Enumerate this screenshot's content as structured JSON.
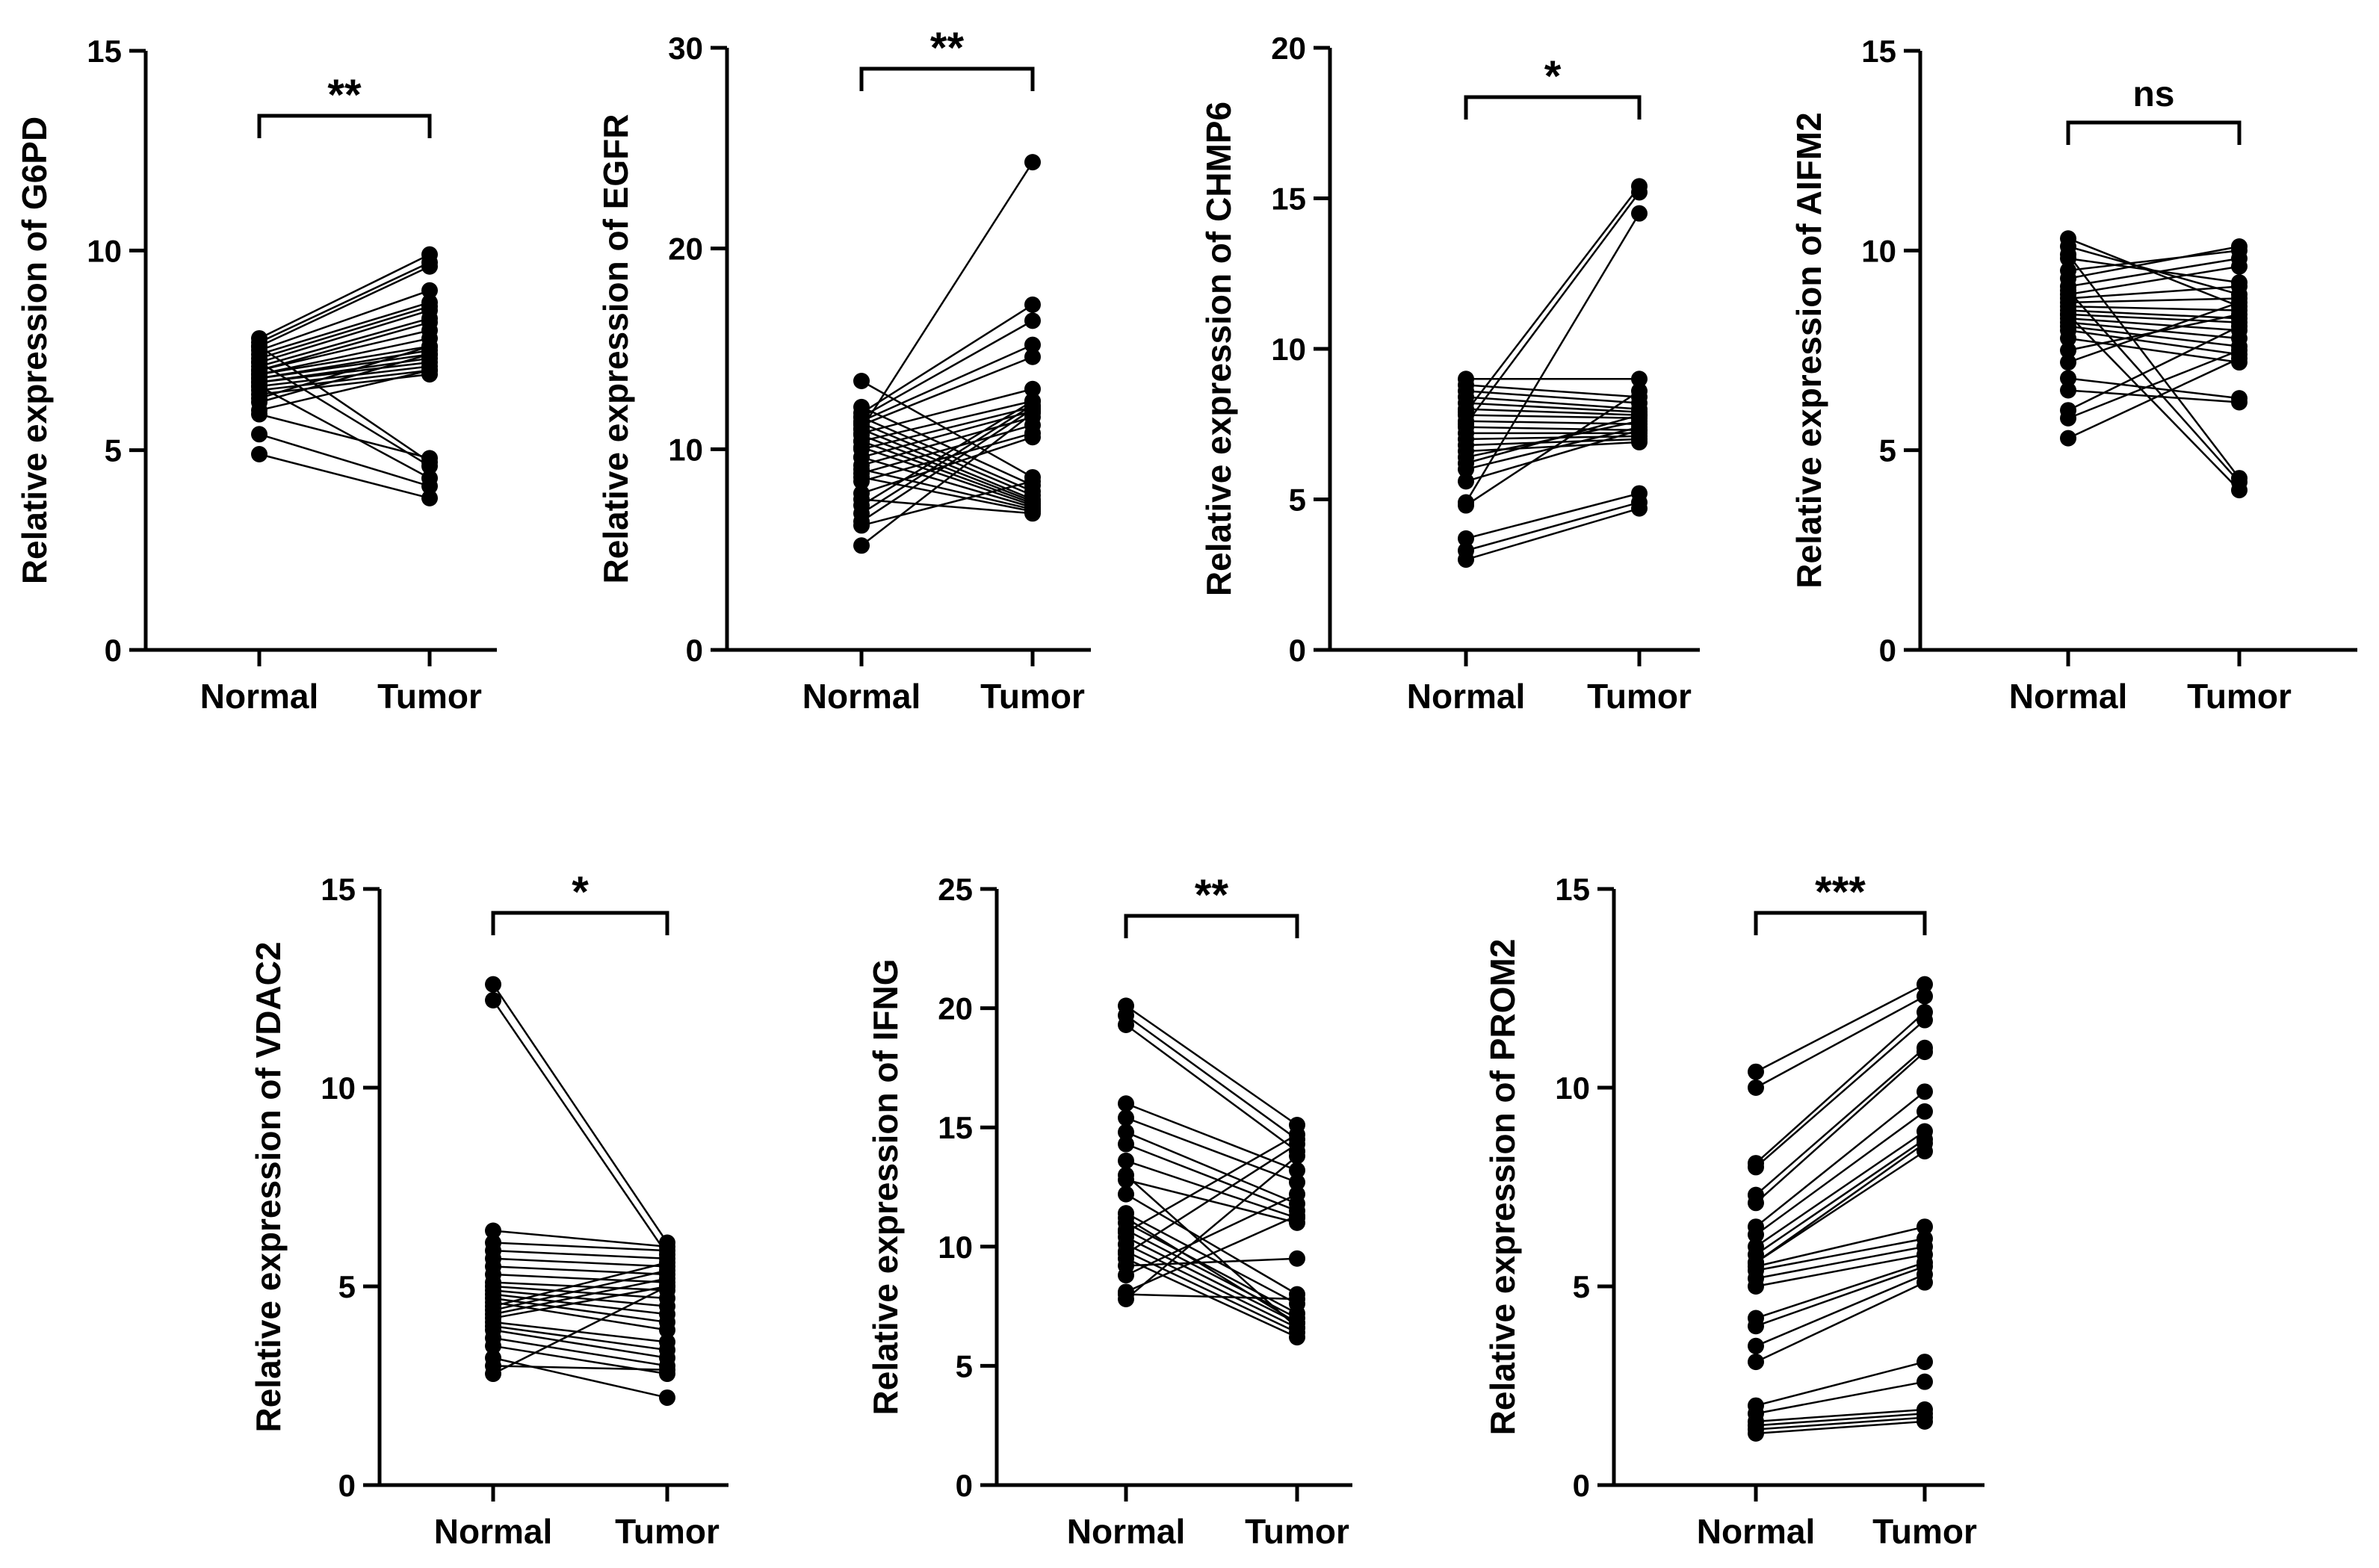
{
  "chart_data": [
    {
      "type": "line",
      "title": "",
      "categories": [
        "Normal",
        "Tumor"
      ],
      "xlabel": "",
      "ylabel": "Relative expression of G6PD",
      "ylim": [
        0,
        15
      ],
      "yticks": [
        0,
        5,
        10,
        15
      ],
      "significance": "**",
      "pairs": [
        [
          7.8,
          9.9
        ],
        [
          7.7,
          9.7
        ],
        [
          7.6,
          9.6
        ],
        [
          7.5,
          9.0
        ],
        [
          7.4,
          8.7
        ],
        [
          7.3,
          8.6
        ],
        [
          7.2,
          8.5
        ],
        [
          7.1,
          8.3
        ],
        [
          7.0,
          8.2
        ],
        [
          7.0,
          8.0
        ],
        [
          6.9,
          7.8
        ],
        [
          6.9,
          7.6
        ],
        [
          6.8,
          7.5
        ],
        [
          6.8,
          7.4
        ],
        [
          6.7,
          7.3
        ],
        [
          6.7,
          7.2
        ],
        [
          6.6,
          7.1
        ],
        [
          6.5,
          7.0
        ],
        [
          6.4,
          6.9
        ],
        [
          6.3,
          7.6
        ],
        [
          6.2,
          7.4
        ],
        [
          6.0,
          7.0
        ],
        [
          5.9,
          4.8
        ],
        [
          7.6,
          4.7
        ],
        [
          7.2,
          4.6
        ],
        [
          6.6,
          4.3
        ],
        [
          5.4,
          4.1
        ],
        [
          4.9,
          3.8
        ]
      ]
    },
    {
      "type": "line",
      "title": "",
      "categories": [
        "Normal",
        "Tumor"
      ],
      "xlabel": "",
      "ylabel": "Relative expression of EGFR",
      "ylim": [
        0,
        30
      ],
      "yticks": [
        0,
        10,
        20,
        30
      ],
      "significance": "**",
      "pairs": [
        [
          11.0,
          24.3
        ],
        [
          11.8,
          17.2
        ],
        [
          11.6,
          16.4
        ],
        [
          11.4,
          15.2
        ],
        [
          11.2,
          14.6
        ],
        [
          10.8,
          13.0
        ],
        [
          10.4,
          12.4
        ],
        [
          10.0,
          12.1
        ],
        [
          9.6,
          11.9
        ],
        [
          9.2,
          11.6
        ],
        [
          8.8,
          11.2
        ],
        [
          8.4,
          10.8
        ],
        [
          7.8,
          10.6
        ],
        [
          7.2,
          12.4
        ],
        [
          6.8,
          12.2
        ],
        [
          6.4,
          12.0
        ],
        [
          5.2,
          11.8
        ],
        [
          13.4,
          8.6
        ],
        [
          12.1,
          8.2
        ],
        [
          11.6,
          7.9
        ],
        [
          11.3,
          7.7
        ],
        [
          11.0,
          7.5
        ],
        [
          10.7,
          7.4
        ],
        [
          10.4,
          7.3
        ],
        [
          10.1,
          7.2
        ],
        [
          9.6,
          7.1
        ],
        [
          9.0,
          7.0
        ],
        [
          8.6,
          6.9
        ],
        [
          7.5,
          6.8
        ],
        [
          6.2,
          8.4
        ]
      ]
    },
    {
      "type": "line",
      "title": "",
      "categories": [
        "Normal",
        "Tumor"
      ],
      "xlabel": "",
      "ylabel": "Relative expression of CHMP6",
      "ylim": [
        0,
        20
      ],
      "yticks": [
        0,
        5,
        10,
        15,
        20
      ],
      "significance": "*",
      "pairs": [
        [
          7.9,
          15.4
        ],
        [
          7.5,
          15.2
        ],
        [
          4.9,
          14.5
        ],
        [
          9.0,
          9.0
        ],
        [
          8.8,
          8.4
        ],
        [
          8.6,
          8.2
        ],
        [
          8.4,
          8.0
        ],
        [
          8.2,
          7.9
        ],
        [
          8.0,
          7.8
        ],
        [
          7.8,
          7.7
        ],
        [
          7.6,
          7.5
        ],
        [
          7.4,
          7.3
        ],
        [
          7.2,
          7.2
        ],
        [
          7.0,
          7.1
        ],
        [
          6.8,
          7.0
        ],
        [
          6.6,
          6.9
        ],
        [
          6.4,
          7.6
        ],
        [
          6.2,
          7.8
        ],
        [
          6.0,
          7.4
        ],
        [
          5.6,
          7.3
        ],
        [
          4.8,
          8.6
        ],
        [
          3.7,
          5.2
        ],
        [
          3.3,
          4.9
        ],
        [
          3.0,
          4.7
        ]
      ]
    },
    {
      "type": "line",
      "title": "",
      "categories": [
        "Normal",
        "Tumor"
      ],
      "xlabel": "",
      "ylabel": "Relative expression of AIFM2",
      "ylim": [
        0,
        15
      ],
      "yticks": [
        0,
        5,
        10,
        15
      ],
      "significance": "ns",
      "pairs": [
        [
          10.3,
          8.6
        ],
        [
          10.1,
          8.9
        ],
        [
          9.8,
          9.2
        ],
        [
          9.5,
          10.0
        ],
        [
          9.3,
          10.1
        ],
        [
          9.1,
          9.8
        ],
        [
          8.9,
          9.6
        ],
        [
          8.8,
          9.1
        ],
        [
          8.7,
          8.8
        ],
        [
          8.6,
          8.5
        ],
        [
          8.5,
          8.3
        ],
        [
          8.4,
          8.2
        ],
        [
          8.3,
          8.0
        ],
        [
          8.2,
          7.8
        ],
        [
          8.1,
          7.6
        ],
        [
          8.0,
          7.4
        ],
        [
          7.8,
          7.2
        ],
        [
          7.5,
          8.4
        ],
        [
          7.2,
          8.7
        ],
        [
          6.8,
          6.3
        ],
        [
          6.5,
          6.2
        ],
        [
          6.0,
          8.1
        ],
        [
          5.8,
          7.5
        ],
        [
          5.3,
          7.3
        ],
        [
          9.9,
          4.3
        ],
        [
          9.0,
          4.2
        ],
        [
          8.4,
          4.0
        ]
      ]
    },
    {
      "type": "line",
      "title": "",
      "categories": [
        "Normal",
        "Tumor"
      ],
      "xlabel": "",
      "ylabel": "Relative expression of VDAC2",
      "ylim": [
        0,
        15
      ],
      "yticks": [
        0,
        5,
        10,
        15
      ],
      "significance": "*",
      "pairs": [
        [
          12.6,
          6.1
        ],
        [
          12.2,
          5.8
        ],
        [
          6.4,
          6.0
        ],
        [
          6.1,
          5.9
        ],
        [
          5.9,
          5.7
        ],
        [
          5.7,
          5.5
        ],
        [
          5.5,
          5.3
        ],
        [
          5.3,
          5.1
        ],
        [
          5.1,
          4.9
        ],
        [
          5.0,
          4.7
        ],
        [
          4.9,
          4.5
        ],
        [
          4.8,
          4.3
        ],
        [
          4.7,
          4.1
        ],
        [
          4.6,
          3.9
        ],
        [
          4.5,
          5.6
        ],
        [
          4.4,
          5.4
        ],
        [
          4.3,
          5.2
        ],
        [
          4.2,
          5.0
        ],
        [
          4.1,
          3.6
        ],
        [
          4.0,
          3.4
        ],
        [
          3.9,
          3.2
        ],
        [
          3.7,
          3.0
        ],
        [
          3.5,
          2.8
        ],
        [
          3.2,
          2.2
        ],
        [
          3.0,
          2.9
        ],
        [
          2.8,
          5.0
        ]
      ]
    },
    {
      "type": "line",
      "title": "",
      "categories": [
        "Normal",
        "Tumor"
      ],
      "xlabel": "",
      "ylabel": "Relative expression of IFNG",
      "ylim": [
        0,
        25
      ],
      "yticks": [
        0,
        5,
        10,
        15,
        20,
        25
      ],
      "significance": "**",
      "pairs": [
        [
          20.1,
          15.1
        ],
        [
          19.7,
          14.5
        ],
        [
          19.3,
          14.0
        ],
        [
          16.0,
          13.2
        ],
        [
          15.4,
          12.7
        ],
        [
          14.8,
          11.8
        ],
        [
          14.3,
          11.5
        ],
        [
          13.6,
          11.2
        ],
        [
          12.8,
          11.0
        ],
        [
          12.2,
          8.0
        ],
        [
          11.4,
          7.6
        ],
        [
          11.0,
          7.2
        ],
        [
          10.7,
          7.0
        ],
        [
          10.4,
          6.8
        ],
        [
          10.1,
          6.6
        ],
        [
          9.8,
          6.4
        ],
        [
          9.5,
          6.2
        ],
        [
          9.2,
          9.5
        ],
        [
          8.8,
          12.2
        ],
        [
          8.1,
          11.3
        ],
        [
          7.8,
          13.8
        ],
        [
          9.7,
          14.3
        ],
        [
          10.6,
          14.7
        ],
        [
          11.2,
          6.8
        ],
        [
          13.0,
          6.6
        ],
        [
          8.0,
          7.8
        ]
      ]
    },
    {
      "type": "line",
      "title": "",
      "categories": [
        "Normal",
        "Tumor"
      ],
      "xlabel": "",
      "ylabel": "Relative expression of PROM2",
      "ylim": [
        0,
        15
      ],
      "yticks": [
        0,
        5,
        10,
        15
      ],
      "significance": "***",
      "pairs": [
        [
          10.4,
          12.6
        ],
        [
          10.0,
          12.3
        ],
        [
          8.1,
          11.9
        ],
        [
          8.0,
          11.7
        ],
        [
          7.3,
          11.0
        ],
        [
          7.1,
          10.9
        ],
        [
          6.5,
          9.9
        ],
        [
          6.3,
          9.4
        ],
        [
          6.0,
          8.9
        ],
        [
          5.8,
          8.7
        ],
        [
          5.6,
          8.6
        ],
        [
          5.6,
          8.4
        ],
        [
          5.5,
          6.5
        ],
        [
          5.4,
          6.2
        ],
        [
          5.2,
          6.0
        ],
        [
          5.0,
          5.8
        ],
        [
          4.2,
          5.6
        ],
        [
          4.0,
          5.5
        ],
        [
          3.5,
          5.3
        ],
        [
          3.1,
          5.1
        ],
        [
          2.0,
          3.1
        ],
        [
          1.8,
          2.6
        ],
        [
          1.6,
          1.9
        ],
        [
          1.5,
          1.8
        ],
        [
          1.4,
          1.7
        ],
        [
          1.3,
          1.6
        ]
      ]
    }
  ]
}
